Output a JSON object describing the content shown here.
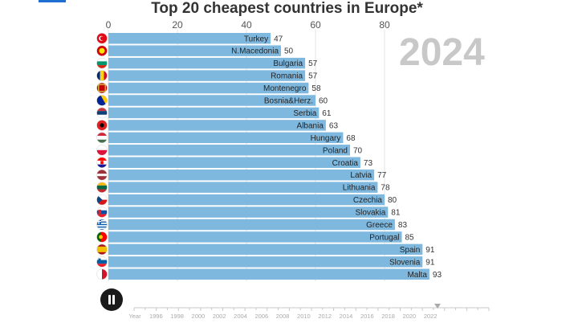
{
  "page": {
    "title": "Top 20 cheapest countries in Europe*",
    "year_display": "2024",
    "accent": "#1f6fd1"
  },
  "player": {
    "icon": "pause-icon"
  },
  "timeline": {
    "labels": [
      "Year",
      "1996",
      "1998",
      "2000",
      "2002",
      "2004",
      "2006",
      "2008",
      "2010",
      "2012",
      "2014",
      "2016",
      "2018",
      "2020",
      "2022"
    ],
    "marker": "triangle-down-icon"
  },
  "chart_data": {
    "type": "bar",
    "orientation": "horizontal",
    "title": "Top 20 cheapest countries in Europe*",
    "xlim": [
      0,
      100
    ],
    "xticks": [
      0,
      20,
      40,
      60,
      80
    ],
    "grid": true,
    "bar_color": "#7fb8df",
    "categories": [
      "Turkey",
      "N.Macedonia",
      "Bulgaria",
      "Romania",
      "Montenegro",
      "Bosnia&Herz.",
      "Serbia",
      "Albania",
      "Hungary",
      "Poland",
      "Croatia",
      "Latvia",
      "Lithuania",
      "Czechia",
      "Slovakia",
      "Greece",
      "Portugal",
      "Spain",
      "Slovenia",
      "Malta"
    ],
    "values": [
      47,
      50,
      57,
      57,
      58,
      60,
      61,
      63,
      68,
      70,
      73,
      77,
      78,
      80,
      81,
      83,
      85,
      91,
      91,
      93
    ],
    "flags": [
      "turkey-flag-icon",
      "north-macedonia-flag-icon",
      "bulgaria-flag-icon",
      "romania-flag-icon",
      "montenegro-flag-icon",
      "bosnia-flag-icon",
      "serbia-flag-icon",
      "albania-flag-icon",
      "hungary-flag-icon",
      "poland-flag-icon",
      "croatia-flag-icon",
      "latvia-flag-icon",
      "lithuania-flag-icon",
      "czechia-flag-icon",
      "slovakia-flag-icon",
      "greece-flag-icon",
      "portugal-flag-icon",
      "spain-flag-icon",
      "slovenia-flag-icon",
      "malta-flag-icon"
    ]
  }
}
